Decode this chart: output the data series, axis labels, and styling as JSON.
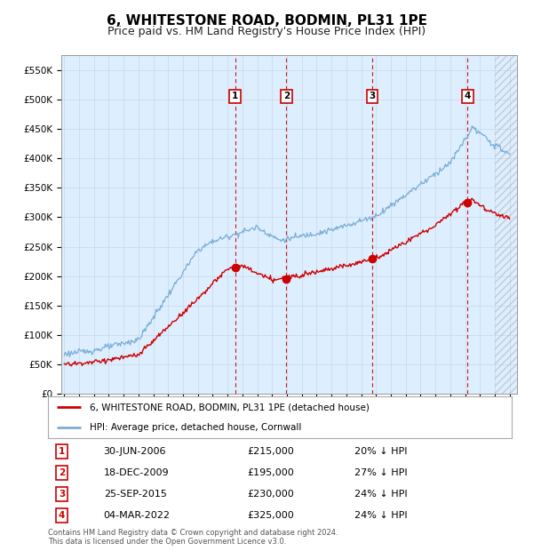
{
  "title": "6, WHITESTONE ROAD, BODMIN, PL31 1PE",
  "subtitle": "Price paid vs. HM Land Registry's House Price Index (HPI)",
  "title_fontsize": 11,
  "subtitle_fontsize": 9,
  "hpi_color": "#7aadd6",
  "price_color": "#cc0000",
  "grid_color": "#c8d8e8",
  "background_color": "#ffffff",
  "plot_bg_color": "#ddeeff",
  "hatch_color": "#bbbbbb",
  "legend_line1": "6, WHITESTONE ROAD, BODMIN, PL31 1PE (detached house)",
  "legend_line2": "HPI: Average price, detached house, Cornwall",
  "transactions": [
    {
      "id": 1,
      "date": "30-JUN-2006",
      "year": 2006.5,
      "price": 215000,
      "pct": "20% ↓ HPI"
    },
    {
      "id": 2,
      "date": "18-DEC-2009",
      "year": 2009.96,
      "price": 195000,
      "pct": "27% ↓ HPI"
    },
    {
      "id": 3,
      "date": "25-SEP-2015",
      "year": 2015.73,
      "price": 230000,
      "pct": "24% ↓ HPI"
    },
    {
      "id": 4,
      "date": "04-MAR-2022",
      "year": 2022.17,
      "price": 325000,
      "pct": "24% ↓ HPI"
    }
  ],
  "footer_line1": "Contains HM Land Registry data © Crown copyright and database right 2024.",
  "footer_line2": "This data is licensed under the Open Government Licence v3.0.",
  "xmin": 1994.8,
  "xmax": 2025.5,
  "hatch_start": 2024.0,
  "ylim_max": 575000,
  "yticks": [
    0,
    50000,
    100000,
    150000,
    200000,
    250000,
    300000,
    350000,
    400000,
    450000,
    500000,
    550000
  ],
  "ytick_labels": [
    "£0",
    "£50K",
    "£100K",
    "£150K",
    "£200K",
    "£250K",
    "£300K",
    "£350K",
    "£400K",
    "£450K",
    "£500K",
    "£550K"
  ]
}
